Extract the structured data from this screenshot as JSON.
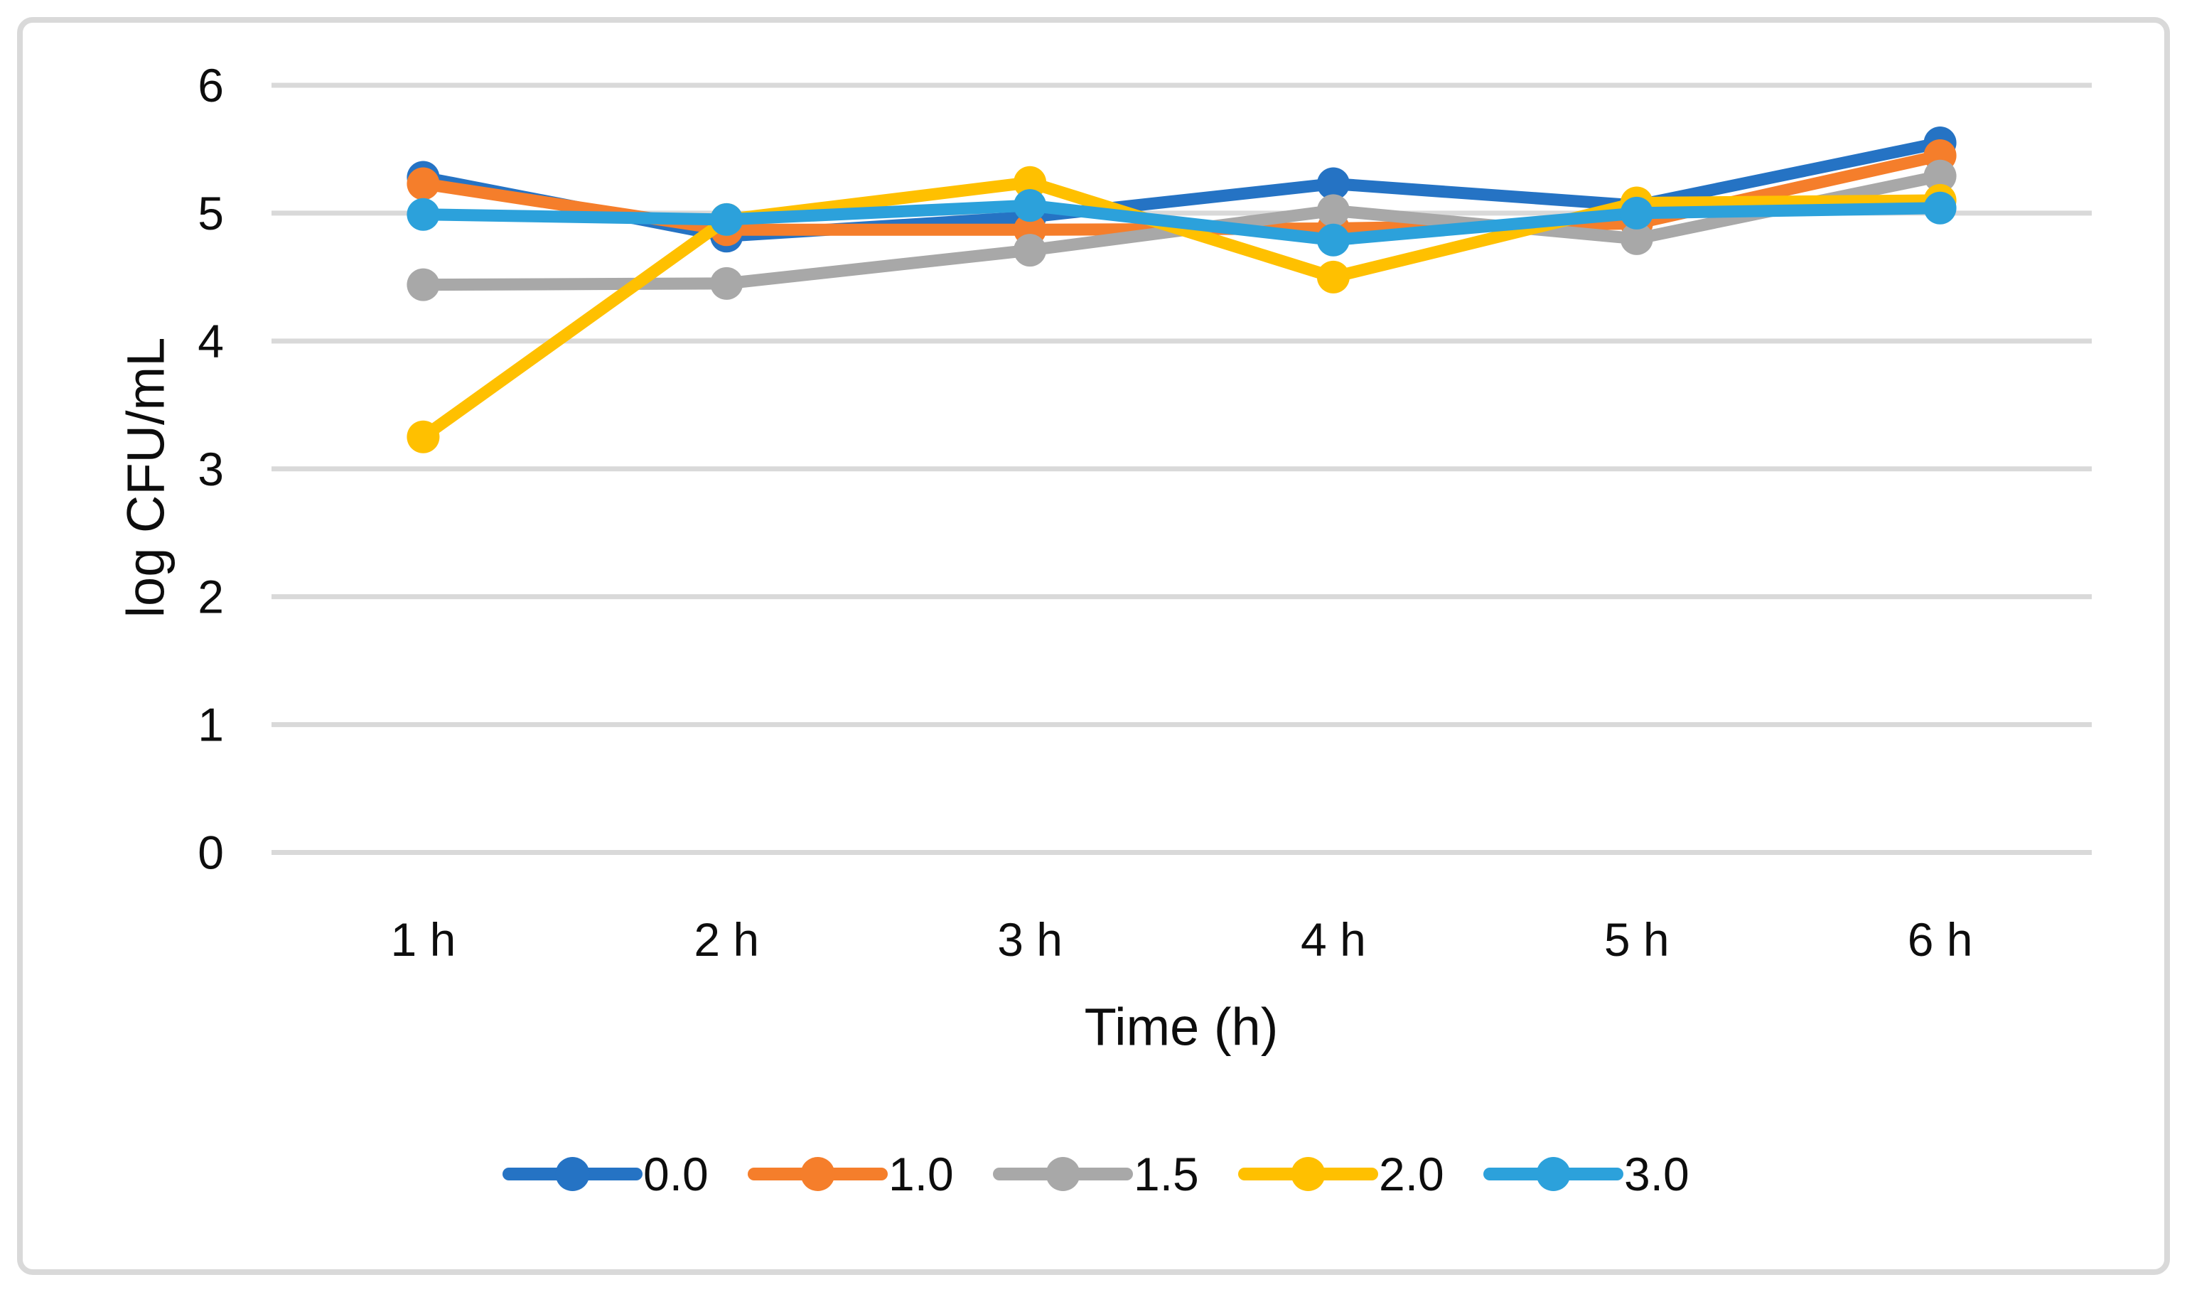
{
  "chart_data": {
    "type": "line",
    "title": "",
    "xlabel": "Time (h)",
    "ylabel": "log CFU/mL",
    "categories": [
      "1 h",
      "2 h",
      "3 h",
      "4 h",
      "5 h",
      "6 h"
    ],
    "y_ticks": [
      0,
      1,
      2,
      3,
      4,
      5,
      6
    ],
    "ylim": [
      0,
      6
    ],
    "grid": "horizontal-only",
    "legend_position": "bottom-center",
    "marker_style": "circle",
    "series": [
      {
        "name": "0.0",
        "color": "#2573C4",
        "values": [
          5.28,
          4.82,
          4.97,
          5.23,
          5.06,
          5.55
        ]
      },
      {
        "name": "1.0",
        "color": "#F57E2B",
        "values": [
          5.23,
          4.87,
          4.87,
          4.88,
          4.92,
          5.45
        ]
      },
      {
        "name": "1.5",
        "color": "#A8A8A8",
        "values": [
          4.44,
          4.45,
          4.71,
          5.02,
          4.8,
          5.29
        ]
      },
      {
        "name": "2.0",
        "color": "#FFC000",
        "values": [
          3.25,
          4.95,
          5.24,
          4.5,
          5.08,
          5.1
        ]
      },
      {
        "name": "3.0",
        "color": "#2CA1DB",
        "values": [
          4.99,
          4.95,
          5.06,
          4.79,
          5.0,
          5.04
        ]
      }
    ],
    "colors": {
      "gridline": "#D9D9D9",
      "frame_border": "#D9D9D9",
      "text": "#0d0d0d",
      "background": "#FFFFFF"
    }
  }
}
